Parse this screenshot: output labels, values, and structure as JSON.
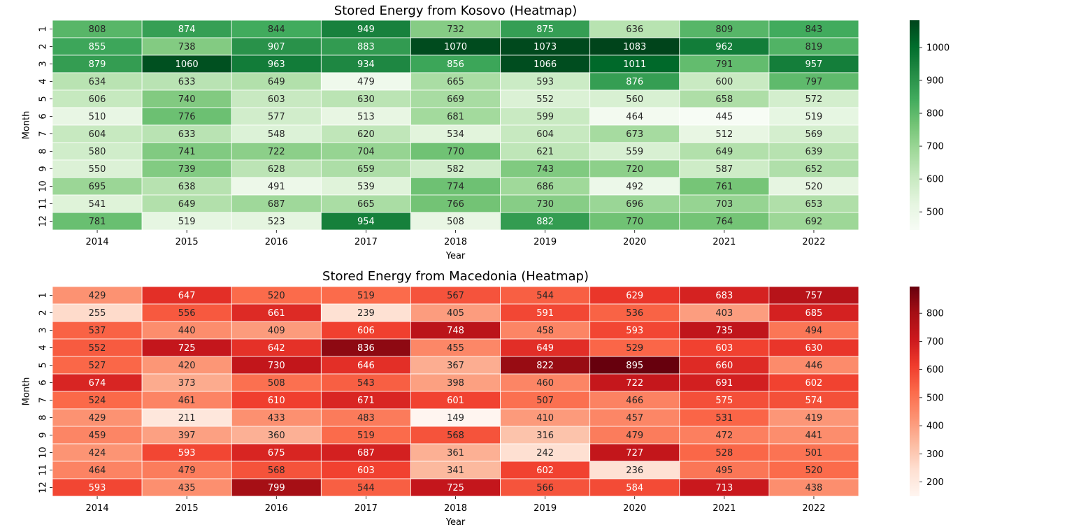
{
  "chart_data": [
    {
      "type": "heatmap",
      "title": "Stored Energy from Kosovo (Heatmap)",
      "xlabel": "Year",
      "ylabel": "Month",
      "colormap": "Greens",
      "x": [
        "2014",
        "2015",
        "2016",
        "2017",
        "2018",
        "2019",
        "2020",
        "2021",
        "2022"
      ],
      "y": [
        "1",
        "2",
        "3",
        "4",
        "5",
        "6",
        "7",
        "8",
        "9",
        "10",
        "11",
        "12"
      ],
      "values": [
        [
          808,
          874,
          844,
          949,
          732,
          875,
          636,
          809,
          843
        ],
        [
          855,
          738,
          907,
          883,
          1070,
          1073,
          1083,
          962,
          819
        ],
        [
          879,
          1060,
          963,
          934,
          856,
          1066,
          1011,
          791,
          957
        ],
        [
          634,
          633,
          649,
          479,
          665,
          593,
          876,
          600,
          797
        ],
        [
          606,
          740,
          603,
          630,
          669,
          552,
          560,
          658,
          572
        ],
        [
          510,
          776,
          577,
          513,
          681,
          599,
          464,
          445,
          519
        ],
        [
          604,
          633,
          548,
          620,
          534,
          604,
          673,
          512,
          569
        ],
        [
          580,
          741,
          722,
          704,
          770,
          621,
          559,
          649,
          639
        ],
        [
          550,
          739,
          628,
          659,
          582,
          743,
          720,
          587,
          652
        ],
        [
          695,
          638,
          491,
          539,
          774,
          686,
          492,
          761,
          520
        ],
        [
          541,
          649,
          687,
          665,
          766,
          730,
          696,
          703,
          653
        ],
        [
          781,
          519,
          523,
          954,
          508,
          882,
          770,
          764,
          692
        ]
      ],
      "colorbar": {
        "range": [
          445,
          1083
        ],
        "ticks": [
          "500",
          "600",
          "700",
          "800",
          "900",
          "1000"
        ]
      }
    },
    {
      "type": "heatmap",
      "title": "Stored Energy from Macedonia (Heatmap)",
      "xlabel": "Year",
      "ylabel": "Month",
      "colormap": "Reds",
      "x": [
        "2014",
        "2015",
        "2016",
        "2017",
        "2018",
        "2019",
        "2020",
        "2021",
        "2022"
      ],
      "y": [
        "1",
        "2",
        "3",
        "4",
        "5",
        "6",
        "7",
        "8",
        "9",
        "10",
        "11",
        "12"
      ],
      "values": [
        [
          429,
          647,
          520,
          519,
          567,
          544,
          629,
          683,
          757
        ],
        [
          255,
          556,
          661,
          239,
          405,
          591,
          536,
          403,
          685
        ],
        [
          537,
          440,
          409,
          606,
          748,
          458,
          593,
          735,
          494
        ],
        [
          552,
          725,
          642,
          836,
          455,
          649,
          529,
          603,
          630
        ],
        [
          527,
          420,
          730,
          646,
          367,
          822,
          895,
          660,
          446
        ],
        [
          674,
          373,
          508,
          543,
          398,
          460,
          722,
          691,
          602
        ],
        [
          524,
          461,
          610,
          671,
          601,
          507,
          466,
          575,
          574
        ],
        [
          429,
          211,
          433,
          483,
          149,
          410,
          457,
          531,
          419
        ],
        [
          459,
          397,
          360,
          519,
          568,
          316,
          479,
          472,
          441
        ],
        [
          424,
          593,
          675,
          687,
          361,
          242,
          727,
          528,
          501
        ],
        [
          464,
          479,
          568,
          603,
          341,
          602,
          236,
          495,
          520
        ],
        [
          593,
          435,
          799,
          544,
          725,
          566,
          584,
          713,
          438
        ]
      ],
      "colorbar": {
        "range": [
          149,
          895
        ],
        "ticks": [
          "200",
          "300",
          "400",
          "500",
          "600",
          "700",
          "800"
        ]
      }
    }
  ]
}
